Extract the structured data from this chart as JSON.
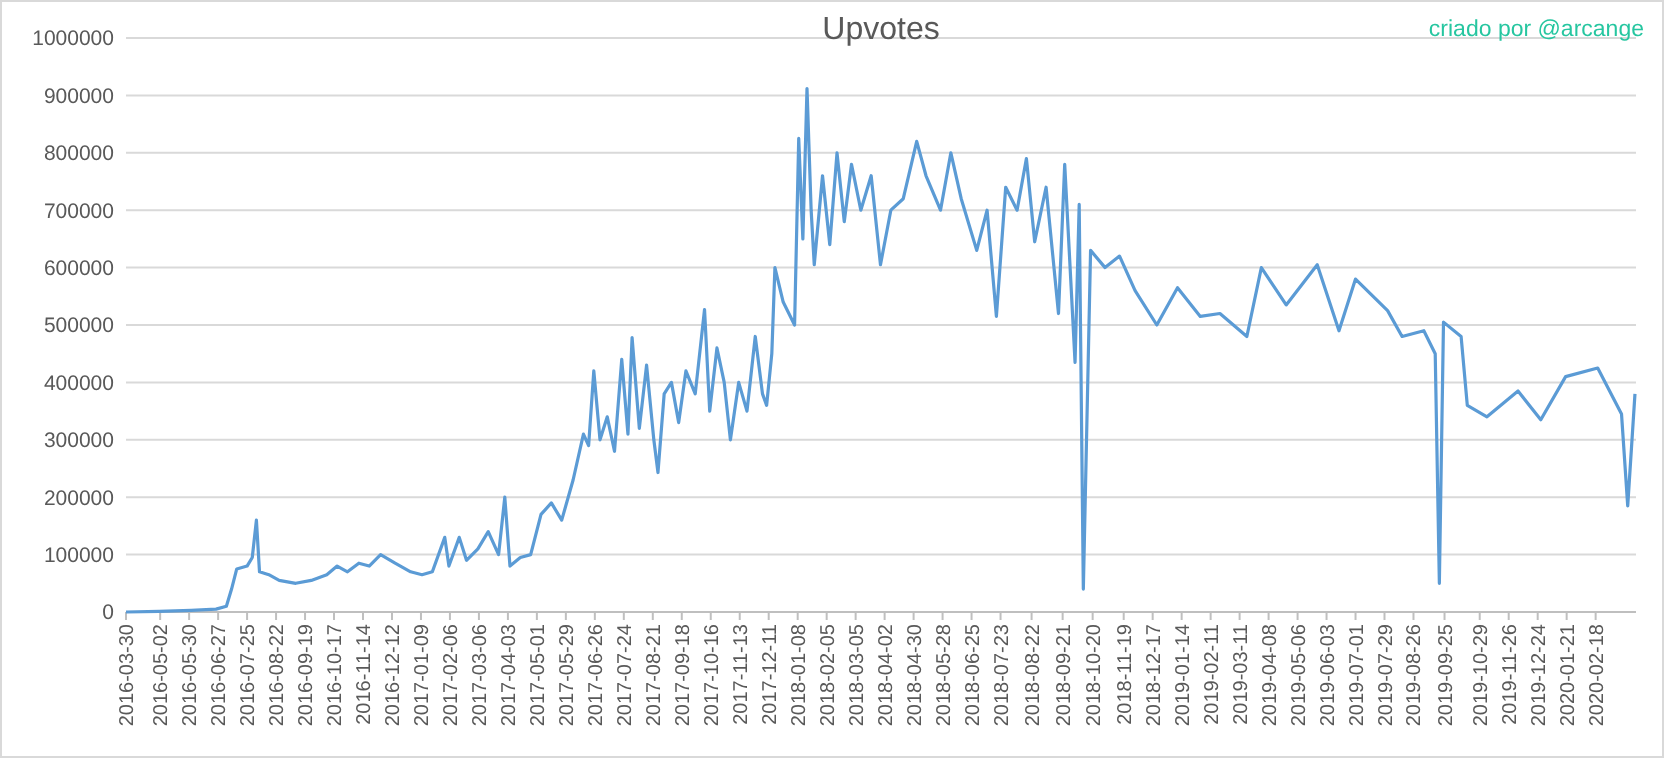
{
  "chart_data": {
    "type": "line",
    "title": "Upvotes",
    "annotations": [
      "criado por @arcange"
    ],
    "xlim": [
      "2016-03-30",
      "2020-03-28"
    ],
    "xticks": [
      "2016-03-30",
      "2016-05-02",
      "2016-05-30",
      "2016-06-27",
      "2016-07-25",
      "2016-08-22",
      "2016-09-19",
      "2016-10-17",
      "2016-11-14",
      "2016-12-12",
      "2017-01-09",
      "2017-02-06",
      "2017-03-06",
      "2017-04-03",
      "2017-05-01",
      "2017-05-29",
      "2017-06-26",
      "2017-07-24",
      "2017-08-21",
      "2017-09-18",
      "2017-10-16",
      "2017-11-13",
      "2017-12-11",
      "2018-01-08",
      "2018-02-05",
      "2018-03-05",
      "2018-04-02",
      "2018-04-30",
      "2018-05-28",
      "2018-06-25",
      "2018-07-23",
      "2018-08-22",
      "2018-09-21",
      "2018-10-20",
      "2018-11-19",
      "2018-12-17",
      "2019-01-14",
      "2019-02-11",
      "2019-03-11",
      "2019-04-08",
      "2019-05-06",
      "2019-06-03",
      "2019-07-01",
      "2019-07-29",
      "2019-08-26",
      "2019-09-25",
      "2019-10-29",
      "2019-11-26",
      "2019-12-24",
      "2020-01-21",
      "2020-02-18"
    ],
    "ylim": [
      0,
      1000000
    ],
    "yticks": [
      0,
      100000,
      200000,
      300000,
      400000,
      500000,
      600000,
      700000,
      800000,
      900000,
      1000000
    ],
    "grid": "y",
    "x": [
      "2016-03-30",
      "2016-05-01",
      "2016-06-01",
      "2016-06-25",
      "2016-07-05",
      "2016-07-10",
      "2016-07-15",
      "2016-07-25",
      "2016-07-30",
      "2016-08-03",
      "2016-08-06",
      "2016-08-15",
      "2016-08-25",
      "2016-09-10",
      "2016-09-25",
      "2016-10-10",
      "2016-10-20",
      "2016-10-30",
      "2016-11-10",
      "2016-11-20",
      "2016-12-01",
      "2016-12-15",
      "2016-12-30",
      "2017-01-10",
      "2017-01-20",
      "2017-02-01",
      "2017-02-05",
      "2017-02-15",
      "2017-02-22",
      "2017-03-05",
      "2017-03-15",
      "2017-03-25",
      "2017-03-31",
      "2017-04-05",
      "2017-04-15",
      "2017-04-25",
      "2017-05-05",
      "2017-05-15",
      "2017-05-25",
      "2017-06-05",
      "2017-06-15",
      "2017-06-20",
      "2017-06-25",
      "2017-07-01",
      "2017-07-08",
      "2017-07-15",
      "2017-07-22",
      "2017-07-28",
      "2017-08-01",
      "2017-08-08",
      "2017-08-15",
      "2017-08-22",
      "2017-08-26",
      "2017-09-01",
      "2017-09-08",
      "2017-09-15",
      "2017-09-22",
      "2017-10-01",
      "2017-10-10",
      "2017-10-15",
      "2017-10-22",
      "2017-10-29",
      "2017-11-04",
      "2017-11-12",
      "2017-11-20",
      "2017-11-28",
      "2017-12-05",
      "2017-12-09",
      "2017-12-14",
      "2017-12-17",
      "2017-12-25",
      "2018-01-05",
      "2018-01-09",
      "2018-01-13",
      "2018-01-17",
      "2018-01-21",
      "2018-01-24",
      "2018-02-01",
      "2018-02-08",
      "2018-02-15",
      "2018-02-22",
      "2018-03-01",
      "2018-03-10",
      "2018-03-20",
      "2018-03-29",
      "2018-04-08",
      "2018-04-20",
      "2018-05-03",
      "2018-05-12",
      "2018-05-26",
      "2018-06-05",
      "2018-06-15",
      "2018-06-30",
      "2018-07-10",
      "2018-07-19",
      "2018-07-28",
      "2018-08-08",
      "2018-08-17",
      "2018-08-25",
      "2018-09-05",
      "2018-09-17",
      "2018-09-23",
      "2018-10-03",
      "2018-10-07",
      "2018-10-11",
      "2018-10-18",
      "2018-11-01",
      "2018-11-15",
      "2018-11-30",
      "2018-12-21",
      "2019-01-10",
      "2019-02-01",
      "2019-02-20",
      "2019-03-18",
      "2019-04-01",
      "2019-04-25",
      "2019-05-25",
      "2019-06-15",
      "2019-07-01",
      "2019-08-01",
      "2019-08-15",
      "2019-09-05",
      "2019-09-16",
      "2019-09-20",
      "2019-09-24",
      "2019-10-11",
      "2019-10-17",
      "2019-11-05",
      "2019-12-05",
      "2019-12-27",
      "2020-01-20",
      "2020-02-20",
      "2020-03-14",
      "2020-03-20",
      "2020-03-27"
    ],
    "series": [
      {
        "color": "#5b9bd5",
        "values": [
          0,
          1000,
          3000,
          5000,
          10000,
          40000,
          75000,
          80000,
          95000,
          160000,
          70000,
          65000,
          55000,
          50000,
          55000,
          65000,
          80000,
          70000,
          85000,
          80000,
          100000,
          85000,
          70000,
          65000,
          70000,
          130000,
          80000,
          130000,
          90000,
          110000,
          140000,
          100000,
          200000,
          80000,
          95000,
          100000,
          170000,
          190000,
          160000,
          230000,
          310000,
          290000,
          420000,
          300000,
          340000,
          280000,
          440000,
          310000,
          478000,
          320000,
          430000,
          300000,
          243000,
          380000,
          400000,
          330000,
          420000,
          380000,
          527000,
          350000,
          460000,
          400000,
          300000,
          400000,
          350000,
          480000,
          380000,
          360000,
          450000,
          600000,
          540000,
          500000,
          825000,
          650000,
          912000,
          700000,
          605000,
          760000,
          640000,
          800000,
          680000,
          780000,
          700000,
          760000,
          605000,
          700000,
          720000,
          820000,
          760000,
          700000,
          800000,
          720000,
          630000,
          700000,
          515000,
          740000,
          700000,
          790000,
          645000,
          740000,
          520000,
          780000,
          435000,
          710000,
          40000,
          630000,
          600000,
          620000,
          560000,
          500000,
          565000,
          515000,
          520000,
          480000,
          600000,
          535000,
          605000,
          490000,
          580000,
          525000,
          480000,
          490000,
          450000,
          50000,
          505000,
          480000,
          360000,
          340000,
          385000,
          335000,
          410000,
          425000,
          345000,
          185000,
          380000
        ]
      }
    ]
  }
}
